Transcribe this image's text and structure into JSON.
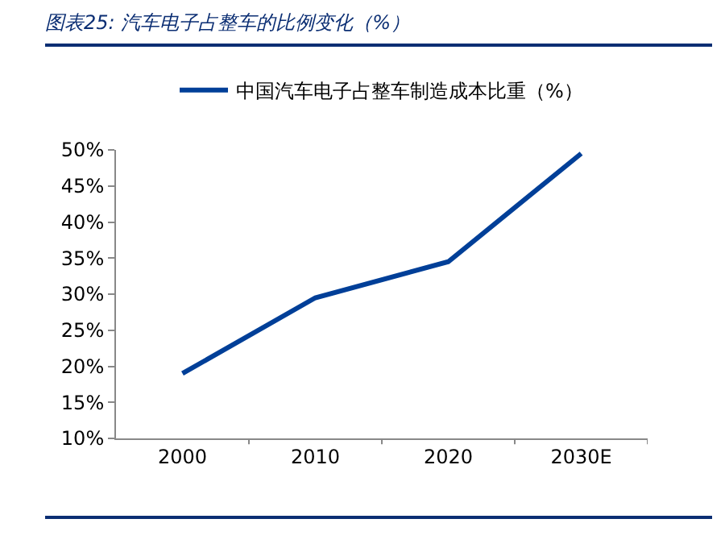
{
  "chart_data": {
    "type": "line",
    "title": "图表25:  汽车电子占整车的比例变化（%）",
    "categories": [
      "2000",
      "2010",
      "2020",
      "2030E"
    ],
    "series": [
      {
        "name": "中国汽车电子占整车制造成本比重（%）",
        "color": "#003f98",
        "values": [
          19,
          29.5,
          34.5,
          49.5
        ]
      }
    ],
    "ylim": [
      10,
      50
    ],
    "yticks": [
      {
        "value": 10,
        "label": "10%"
      },
      {
        "value": 15,
        "label": "15%"
      },
      {
        "value": 20,
        "label": "20%"
      },
      {
        "value": 25,
        "label": "25%"
      },
      {
        "value": 30,
        "label": "30%"
      },
      {
        "value": 35,
        "label": "35%"
      },
      {
        "value": 40,
        "label": "40%"
      },
      {
        "value": 45,
        "label": "45%"
      },
      {
        "value": 50,
        "label": "50%"
      }
    ],
    "grid": false,
    "legend": "top",
    "marker": "none",
    "line_style": "solid"
  }
}
